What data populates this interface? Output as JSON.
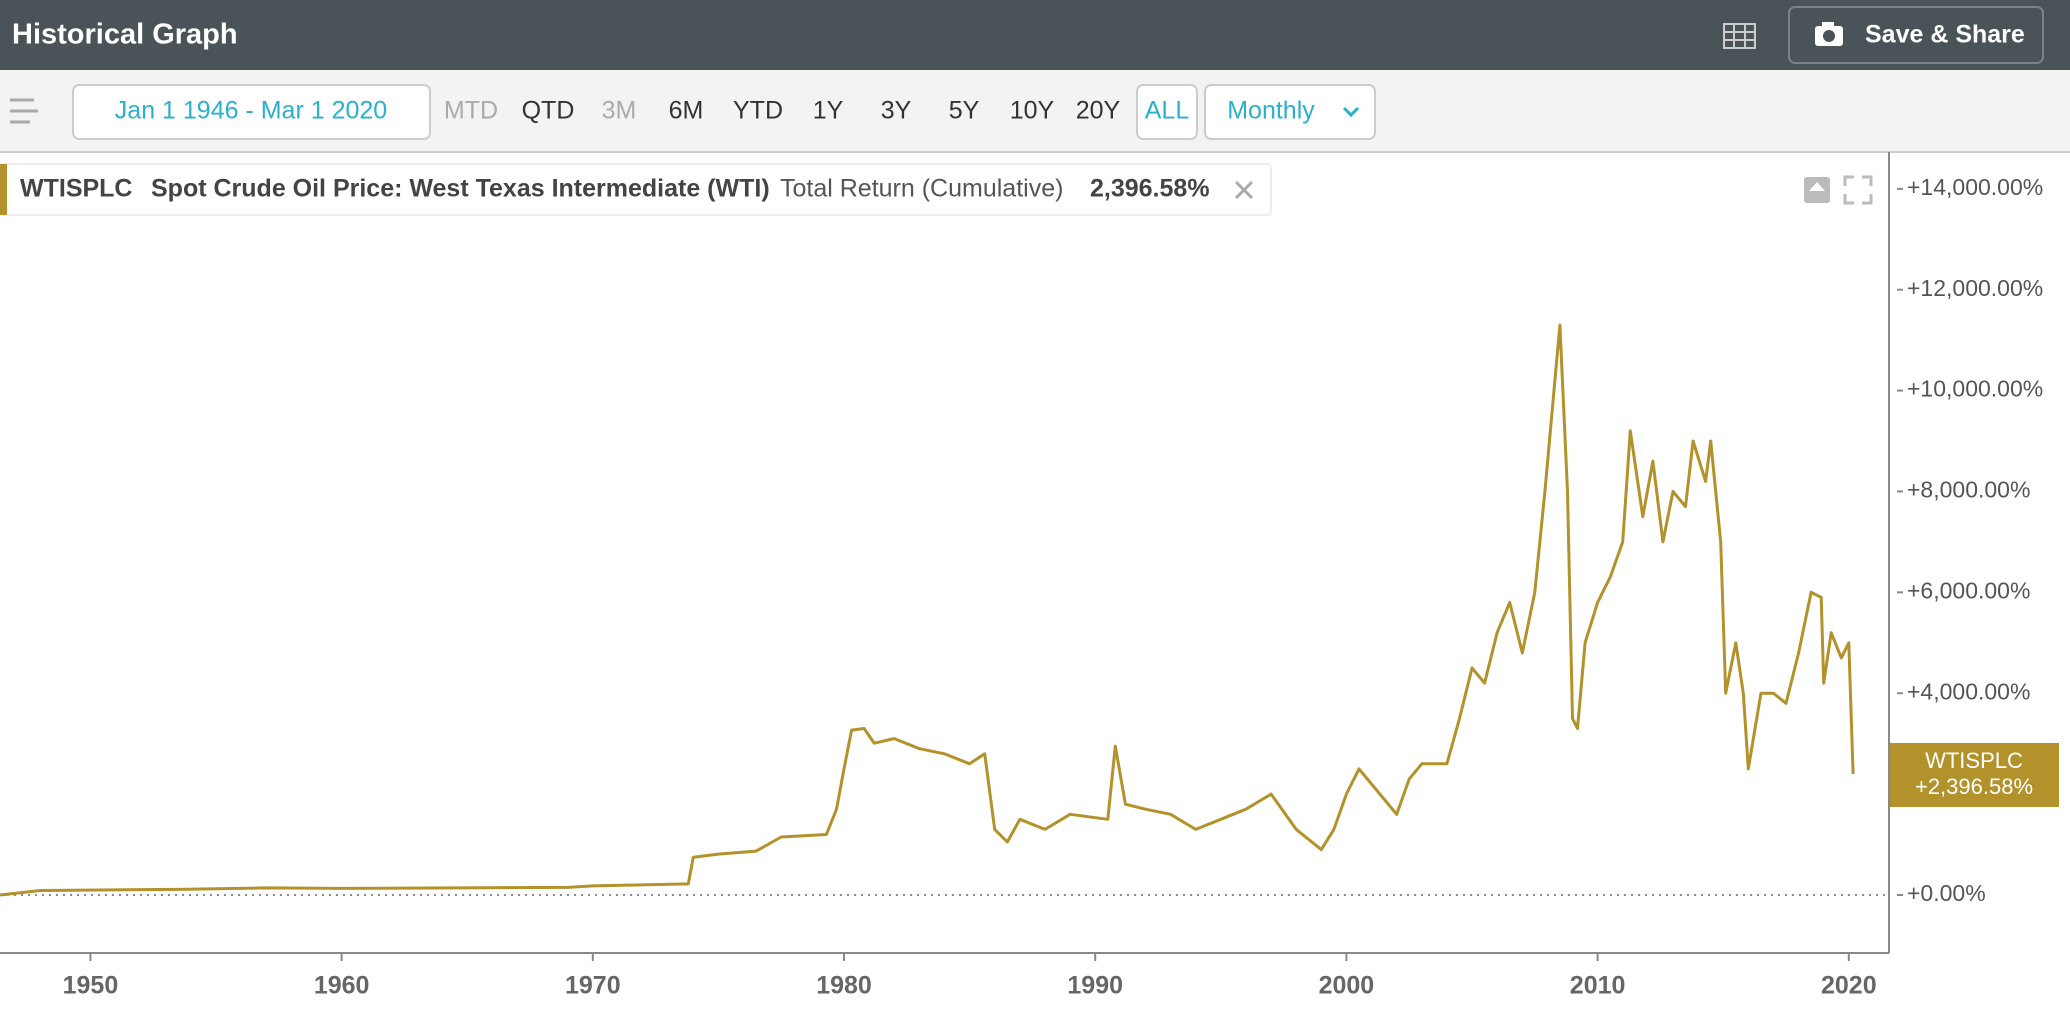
{
  "ui": {
    "title": "Historical Graph",
    "share": "Save & Share",
    "date_range": "Jan 1 1946 - Mar 1 2020",
    "ranges": [
      "MTD",
      "QTD",
      "3M",
      "6M",
      "YTD",
      "1Y",
      "3Y",
      "5Y",
      "10Y",
      "20Y",
      "ALL"
    ],
    "disabled_ranges": [
      "MTD",
      "3M"
    ],
    "active_range": "ALL",
    "frequency": "Monthly"
  },
  "chart_data": {
    "type": "line",
    "grid": false,
    "xlim": [
      1946.4,
      2021.6
    ],
    "xticks": [
      1950,
      1960,
      1970,
      1980,
      1990,
      2000,
      2010,
      2020
    ],
    "ylim": [
      -1150,
      14730
    ],
    "yticks": [
      {
        "value": 0,
        "label": "+0.00%"
      },
      {
        "value": 4000,
        "label": "+4,000.00%"
      },
      {
        "value": 6000,
        "label": "+6,000.00%"
      },
      {
        "value": 8000,
        "label": "+8,000.00%"
      },
      {
        "value": 10000,
        "label": "+10,000.00%"
      },
      {
        "value": 12000,
        "label": "+12,000.00%"
      },
      {
        "value": 14000,
        "label": "+14,000.00%"
      }
    ],
    "x": [
      1946.4,
      1948.0,
      1953.5,
      1957.0,
      1960,
      1969,
      1970,
      1973.8,
      1974.0,
      1975,
      1976.5,
      1977.5,
      1979.3,
      1979.7,
      1980.0,
      1980.3,
      1980.8,
      1981.2,
      1982,
      1983,
      1984,
      1985,
      1985.6,
      1986.0,
      1986.5,
      1987,
      1988,
      1989,
      1990.5,
      1990.8,
      1991.2,
      1992,
      1993,
      1994,
      1995,
      1996,
      1997,
      1998,
      1999,
      1999.5,
      2000,
      2000.5,
      2001,
      2002,
      2002.5,
      2003,
      2004,
      2004.5,
      2005,
      2005.5,
      2006,
      2006.5,
      2007,
      2007.5,
      2007.9,
      2008.5,
      2008.8,
      2009,
      2009.2,
      2009.5,
      2010,
      2010.5,
      2011,
      2011.3,
      2011.8,
      2012.2,
      2012.6,
      2013,
      2013.5,
      2013.8,
      2014.3,
      2014.5,
      2014.9,
      2015.1,
      2015.5,
      2015.8,
      2016,
      2016.5,
      2017,
      2017.5,
      2018,
      2018.5,
      2018.9,
      2019,
      2019.3,
      2019.7,
      2020.0,
      2020.17
    ],
    "series": [
      {
        "name": "WTISPLC",
        "description": "Spot Crude Oil Price: West Texas Intermediate (WTI)",
        "metric": "Total Return (Cumulative)",
        "summary_label": "2,396.58%",
        "last_value_label": "+2,396.58%",
        "color": "#b3922c",
        "values": [
          0,
          90,
          110,
          140,
          130,
          150,
          180,
          220,
          750,
          810,
          870,
          1150,
          1200,
          1700,
          2500,
          3270,
          3300,
          3010,
          3100,
          2900,
          2800,
          2600,
          2800,
          1300,
          1050,
          1500,
          1300,
          1600,
          1500,
          2950,
          1800,
          1700,
          1600,
          1300,
          1500,
          1700,
          2000,
          1300,
          900,
          1300,
          2000,
          2500,
          2200,
          1600,
          2300,
          2600,
          2600,
          3500,
          4500,
          4200,
          5200,
          5800,
          4800,
          6000,
          8000,
          11300,
          8000,
          3500,
          3300,
          5000,
          5800,
          6300,
          7000,
          9200,
          7500,
          8600,
          7000,
          8000,
          7700,
          9000,
          8200,
          9000,
          7000,
          4000,
          5000,
          4000,
          2500,
          4000,
          4000,
          3800,
          4800,
          6000,
          5900,
          4200,
          5200,
          4700,
          5000,
          2396.58
        ]
      }
    ]
  }
}
